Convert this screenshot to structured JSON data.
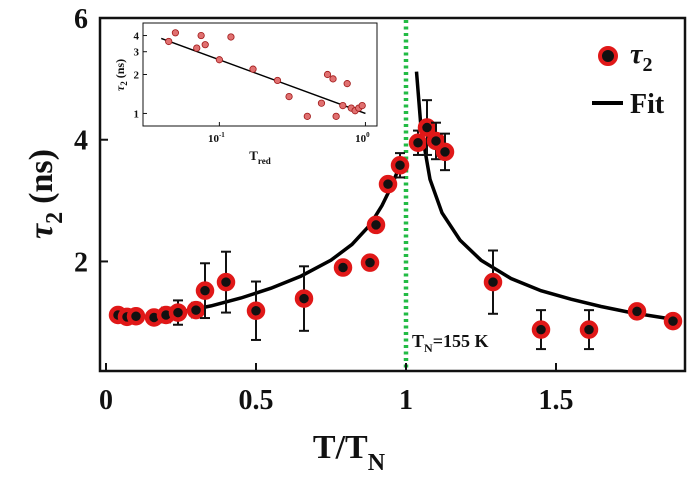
{
  "chart_data": {
    "type": "scatter",
    "xlabel": "T/T",
    "xlabel_sub": "N",
    "ylabel": "τ",
    "ylabel_sub": "2",
    "ylabel_unit": "(ns)",
    "xlim": [
      -0.02,
      1.93
    ],
    "ylim": [
      0.2,
      6.0
    ],
    "x_ticks": [
      0,
      0.5,
      1,
      1.5
    ],
    "x_tick_labels": [
      "0",
      "0.5",
      "1",
      "1.5"
    ],
    "y_ticks": [
      2,
      4,
      6
    ],
    "y_tick_labels": [
      "2",
      "4",
      "6"
    ],
    "transition_line": {
      "x": 1.0,
      "color": "#22bb44",
      "label": "T",
      "label_sub": "N",
      "label_rest": "=155 K"
    },
    "legend": {
      "position": "top-right",
      "entries": [
        {
          "label": "τ",
          "label_sub": "2",
          "kind": "marker"
        },
        {
          "label": "Fit",
          "kind": "line"
        }
      ]
    },
    "series": [
      {
        "name": "τ2",
        "marker_fill": "#111111",
        "marker_edge": "#e01818",
        "points": [
          {
            "x": 0.04,
            "y": 1.12,
            "err": 0.1
          },
          {
            "x": 0.07,
            "y": 1.09,
            "err": 0.08
          },
          {
            "x": 0.1,
            "y": 1.1,
            "err": 0.08
          },
          {
            "x": 0.16,
            "y": 1.08,
            "err": 0.1
          },
          {
            "x": 0.2,
            "y": 1.12,
            "err": 0.12
          },
          {
            "x": 0.24,
            "y": 1.16,
            "err": 0.2
          },
          {
            "x": 0.3,
            "y": 1.2,
            "err": 0.12
          },
          {
            "x": 0.33,
            "y": 1.52,
            "err": 0.45
          },
          {
            "x": 0.4,
            "y": 1.66,
            "err": 0.5
          },
          {
            "x": 0.5,
            "y": 1.19,
            "err": 0.48
          },
          {
            "x": 0.66,
            "y": 1.39,
            "err": 0.53
          },
          {
            "x": 0.79,
            "y": 1.9,
            "err": 0.0
          },
          {
            "x": 0.88,
            "y": 1.98,
            "err": 0.0
          },
          {
            "x": 0.9,
            "y": 2.6,
            "err": 0.0
          },
          {
            "x": 0.94,
            "y": 3.27,
            "err": 0.1
          },
          {
            "x": 0.98,
            "y": 3.58,
            "err": 0.2
          },
          {
            "x": 1.04,
            "y": 3.95,
            "err": 0.2
          },
          {
            "x": 1.07,
            "y": 4.2,
            "err": 0.45
          },
          {
            "x": 1.1,
            "y": 3.98,
            "err": 0.3
          },
          {
            "x": 1.13,
            "y": 3.8,
            "err": 0.3
          },
          {
            "x": 1.29,
            "y": 1.66,
            "err": 0.52
          },
          {
            "x": 1.45,
            "y": 0.88,
            "err": 0.32
          },
          {
            "x": 1.61,
            "y": 0.88,
            "err": 0.32
          },
          {
            "x": 1.77,
            "y": 1.18,
            "err": 0.0
          },
          {
            "x": 1.89,
            "y": 1.02,
            "err": 0.0
          }
        ]
      },
      {
        "name": "Fit",
        "color": "#000000",
        "below": [
          [
            0.04,
            1.06
          ],
          [
            0.15,
            1.1
          ],
          [
            0.25,
            1.17
          ],
          [
            0.35,
            1.27
          ],
          [
            0.45,
            1.4
          ],
          [
            0.55,
            1.56
          ],
          [
            0.65,
            1.76
          ],
          [
            0.75,
            2.02
          ],
          [
            0.82,
            2.28
          ],
          [
            0.88,
            2.6
          ],
          [
            0.92,
            2.92
          ],
          [
            0.95,
            3.22
          ],
          [
            0.975,
            3.52
          ],
          [
            0.99,
            3.7
          ]
        ],
        "above": [
          [
            1.035,
            5.12
          ],
          [
            1.05,
            4.2
          ],
          [
            1.08,
            3.35
          ],
          [
            1.12,
            2.8
          ],
          [
            1.18,
            2.35
          ],
          [
            1.25,
            2.02
          ],
          [
            1.35,
            1.72
          ],
          [
            1.45,
            1.52
          ],
          [
            1.55,
            1.38
          ],
          [
            1.65,
            1.26
          ],
          [
            1.75,
            1.16
          ],
          [
            1.85,
            1.08
          ],
          [
            1.89,
            1.05
          ]
        ]
      }
    ],
    "inset": {
      "type": "scatter",
      "xscale": "log",
      "yscale": "log",
      "xlim": [
        0.03,
        1.2
      ],
      "ylim": [
        0.8,
        5.0
      ],
      "xlabel": "T",
      "xlabel_sub": "red",
      "ylabel": "τ",
      "ylabel_sub": "2",
      "ylabel_unit": " (ns)",
      "x_ticks": [
        0.1,
        1
      ],
      "x_tick_base": "10",
      "x_tick_exponents": [
        "-1",
        "0"
      ],
      "y_ticks": [
        1,
        2,
        3,
        4
      ],
      "y_tick_labels": [
        "1",
        "2",
        "3",
        "4"
      ],
      "points": [
        [
          0.045,
          3.6
        ],
        [
          0.05,
          4.2
        ],
        [
          0.07,
          3.2
        ],
        [
          0.075,
          4.0
        ],
        [
          0.08,
          3.4
        ],
        [
          0.1,
          2.6
        ],
        [
          0.12,
          3.9
        ],
        [
          0.17,
          2.2
        ],
        [
          0.25,
          1.8
        ],
        [
          0.3,
          1.35
        ],
        [
          0.4,
          0.95
        ],
        [
          0.5,
          1.2
        ],
        [
          0.55,
          2.0
        ],
        [
          0.6,
          1.85
        ],
        [
          0.63,
          0.95
        ],
        [
          0.7,
          1.15
        ],
        [
          0.75,
          1.7
        ],
        [
          0.8,
          1.1
        ],
        [
          0.85,
          1.05
        ],
        [
          0.9,
          1.1
        ],
        [
          0.95,
          1.15
        ]
      ],
      "fit": [
        [
          0.04,
          3.8
        ],
        [
          1.0,
          1.0
        ]
      ]
    }
  }
}
